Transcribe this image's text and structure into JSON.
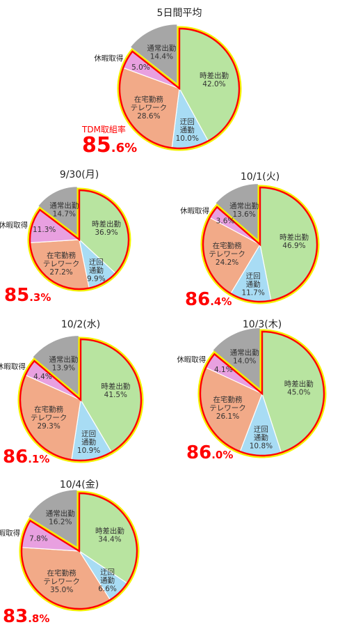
{
  "colors": {
    "時差出勤": "#b8e4a0",
    "迂回通勤": "#a8dcf4",
    "在宅勤務テレワーク": "#f2aa88",
    "休暇取得": "#e8a0e0",
    "通常出勤": "#a6a6a6",
    "highlight_outer": "#f4f000",
    "highlight_inner": "#ff0000",
    "rate": "#ff0000"
  },
  "tdm_label": "TDM取組率",
  "chart_data": [
    {
      "type": "pie",
      "title": "5日間平均",
      "labels": [
        "時差出勤",
        "迂回\n通勤",
        "在宅勤務\nテレワーク",
        "休暇取得",
        "通常出勤"
      ],
      "values": [
        42.0,
        10.0,
        28.6,
        5.0,
        14.4
      ],
      "value_labels": [
        "42.0%",
        "10.0%",
        "28.6%",
        "5.0%",
        "14.4%"
      ],
      "tdm_rate": {
        "main": "85",
        "decimal": ".6%"
      }
    },
    {
      "type": "pie",
      "title": "9/30(月)",
      "labels": [
        "時差出勤",
        "迂回\n通勤",
        "在宅勤務\nテレワーク",
        "休暇取得",
        "通常出勤"
      ],
      "values": [
        36.9,
        9.9,
        27.2,
        11.3,
        14.7
      ],
      "value_labels": [
        "36.9%",
        "9.9%",
        "27.2%",
        "11.3%",
        "14.7%"
      ],
      "tdm_rate": {
        "main": "85",
        "decimal": ".3%"
      }
    },
    {
      "type": "pie",
      "title": "10/1(火)",
      "labels": [
        "時差出勤",
        "迂回\n通勤",
        "在宅勤務\nテレワーク",
        "休暇取得",
        "通常出勤"
      ],
      "values": [
        46.9,
        11.7,
        24.2,
        3.6,
        13.6
      ],
      "value_labels": [
        "46.9%",
        "11.7%",
        "24.2%",
        "3.6%",
        "13.6%"
      ],
      "tdm_rate": {
        "main": "86",
        "decimal": ".4%"
      }
    },
    {
      "type": "pie",
      "title": "10/2(水)",
      "labels": [
        "時差出勤",
        "迂回\n通勤",
        "在宅勤務\nテレワーク",
        "休暇取得",
        "通常出勤"
      ],
      "values": [
        41.5,
        10.9,
        29.3,
        4.4,
        13.9
      ],
      "value_labels": [
        "41.5%",
        "10.9%",
        "29.3%",
        "4.4%",
        "13.9%"
      ],
      "tdm_rate": {
        "main": "86",
        "decimal": ".1%"
      }
    },
    {
      "type": "pie",
      "title": "10/3(木)",
      "labels": [
        "時差出勤",
        "迂回\n通勤",
        "在宅勤務\nテレワーク",
        "休暇取得",
        "通常出勤"
      ],
      "values": [
        45.0,
        10.8,
        26.1,
        4.1,
        14.0
      ],
      "value_labels": [
        "45.0%",
        "10.8%",
        "26.1%",
        "4.1%",
        "14.0%"
      ],
      "tdm_rate": {
        "main": "86",
        "decimal": ".0%"
      }
    },
    {
      "type": "pie",
      "title": "10/4(金)",
      "labels": [
        "時差出勤",
        "迂回\n通勤",
        "在宅勤務\nテレワーク",
        "休暇取得",
        "通常出勤"
      ],
      "values": [
        34.4,
        6.6,
        35.0,
        7.8,
        16.2
      ],
      "value_labels": [
        "34.4%",
        "6.6%",
        "35.0%",
        "7.8%",
        "16.2%"
      ],
      "tdm_rate": {
        "main": "83",
        "decimal": ".8%"
      }
    }
  ]
}
